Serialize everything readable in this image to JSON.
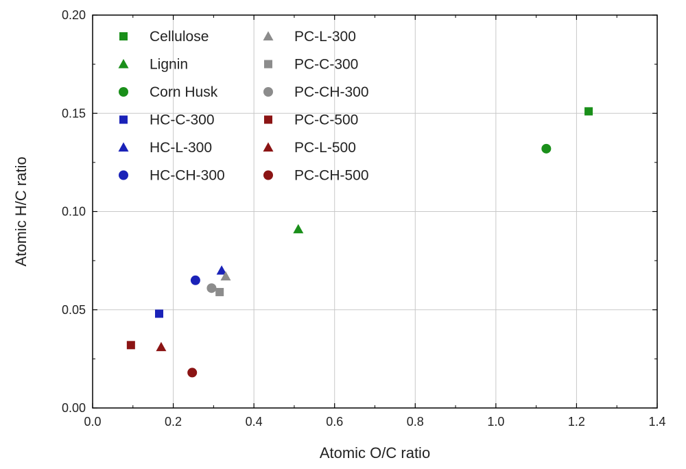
{
  "chart_data": {
    "type": "scatter",
    "xlabel": "Atomic O/C ratio",
    "ylabel": "Atomic H/C ratio",
    "xlim": [
      0.0,
      1.4
    ],
    "ylim": [
      0.0,
      0.2
    ],
    "x_ticks": [
      "0.0",
      "0.2",
      "0.4",
      "0.6",
      "0.8",
      "1.0",
      "1.2",
      "1.4"
    ],
    "y_ticks": [
      "0.00",
      "0.05",
      "0.10",
      "0.15",
      "0.20"
    ],
    "grid": true,
    "legend_position": "top-left",
    "series": [
      {
        "name": "Cellulose",
        "marker": "square",
        "color": "#1a8f1a",
        "x": 1.23,
        "y": 0.151
      },
      {
        "name": "Lignin",
        "marker": "triangle",
        "color": "#1a8f1a",
        "x": 0.51,
        "y": 0.091
      },
      {
        "name": "Corn Husk",
        "marker": "circle",
        "color": "#1a8f1a",
        "x": 1.125,
        "y": 0.132
      },
      {
        "name": "HC-C-300",
        "marker": "square",
        "color": "#1a22b8",
        "x": 0.165,
        "y": 0.048
      },
      {
        "name": "HC-L-300",
        "marker": "triangle",
        "color": "#1a22b8",
        "x": 0.32,
        "y": 0.07
      },
      {
        "name": "HC-CH-300",
        "marker": "circle",
        "color": "#1a22b8",
        "x": 0.255,
        "y": 0.065
      },
      {
        "name": "PC-L-300",
        "marker": "triangle",
        "color": "#8c8c8c",
        "x": 0.33,
        "y": 0.067
      },
      {
        "name": "PC-C-300",
        "marker": "square",
        "color": "#8c8c8c",
        "x": 0.315,
        "y": 0.059
      },
      {
        "name": "PC-CH-300",
        "marker": "circle",
        "color": "#8c8c8c",
        "x": 0.295,
        "y": 0.061
      },
      {
        "name": "PC-C-500",
        "marker": "square",
        "color": "#8b1414",
        "x": 0.095,
        "y": 0.032
      },
      {
        "name": "PC-L-500",
        "marker": "triangle",
        "color": "#8b1414",
        "x": 0.17,
        "y": 0.031
      },
      {
        "name": "PC-CH-500",
        "marker": "circle",
        "color": "#8b1414",
        "x": 0.247,
        "y": 0.018
      }
    ]
  }
}
